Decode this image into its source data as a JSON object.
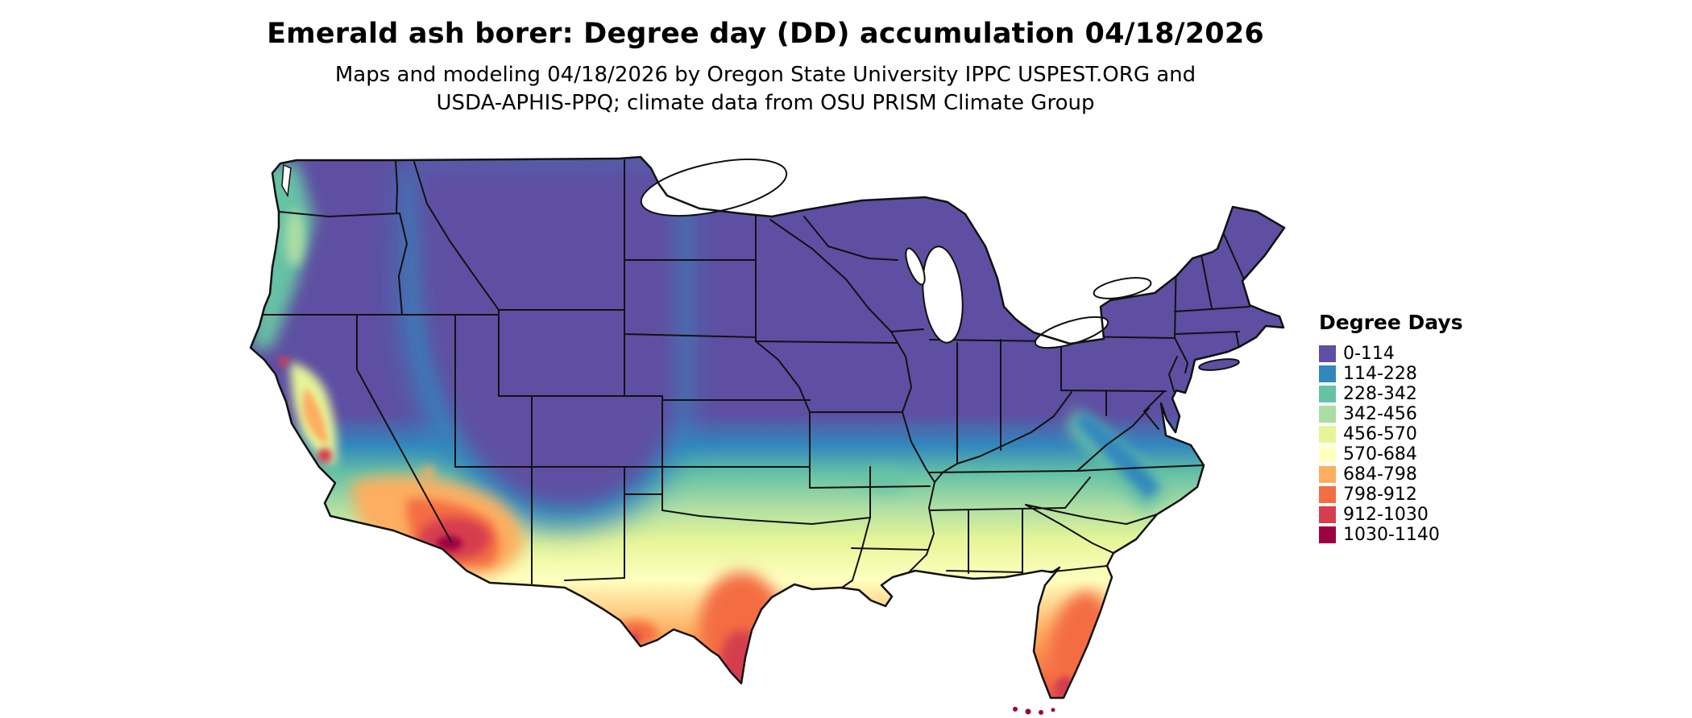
{
  "header": {
    "title": "Emerald ash borer: Degree day (DD) accumulation 04/18/2026",
    "subtitle_line1": "Maps and modeling 04/18/2026 by Oregon State University IPPC USPEST.ORG and",
    "subtitle_line2": "USDA-APHIS-PPQ; climate data from OSU PRISM Climate Group"
  },
  "legend": {
    "title": "Degree Days",
    "items": [
      {
        "label": "0-114",
        "color": "#5e4fa2"
      },
      {
        "label": "114-228",
        "color": "#3288bd"
      },
      {
        "label": "228-342",
        "color": "#66c2a5"
      },
      {
        "label": "342-456",
        "color": "#abdda4"
      },
      {
        "label": "456-570",
        "color": "#e6f598"
      },
      {
        "label": "570-684",
        "color": "#ffffbf"
      },
      {
        "label": "684-798",
        "color": "#fdae61"
      },
      {
        "label": "798-912",
        "color": "#f46d43"
      },
      {
        "label": "912-1030",
        "color": "#d53e4f"
      },
      {
        "label": "1030-1140",
        "color": "#9e0142"
      }
    ]
  }
}
